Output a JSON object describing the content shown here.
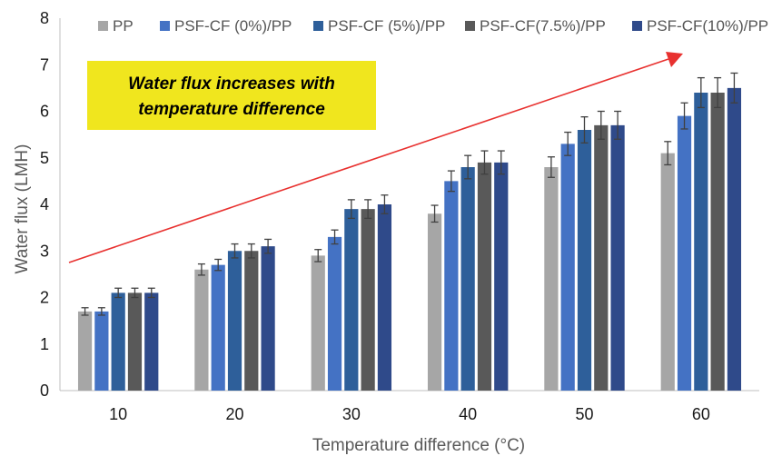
{
  "chart_data": {
    "type": "bar",
    "title": "",
    "xlabel": "Temperature difference (°C)",
    "ylabel": "Water flux (LMH)",
    "ylim": [
      0,
      8
    ],
    "yticks": [
      "0",
      "1",
      "2",
      "3",
      "4",
      "5",
      "6",
      "7",
      "8"
    ],
    "categories": [
      "10",
      "20",
      "30",
      "40",
      "50",
      "60"
    ],
    "series": [
      {
        "name": "PP",
        "color": "#a6a6a6",
        "values": [
          1.7,
          2.6,
          2.9,
          3.8,
          4.8,
          5.1
        ],
        "errors": [
          0.08,
          0.12,
          0.13,
          0.18,
          0.22,
          0.25
        ]
      },
      {
        "name": "PSF-CF (0%)/PP",
        "color": "#4472c4",
        "values": [
          1.7,
          2.7,
          3.3,
          4.5,
          5.3,
          5.9
        ],
        "errors": [
          0.08,
          0.12,
          0.15,
          0.22,
          0.25,
          0.28
        ]
      },
      {
        "name": "PSF-CF (5%)/PP",
        "color": "#2e5f9a",
        "values": [
          2.1,
          3.0,
          3.9,
          4.8,
          5.6,
          6.4
        ],
        "errors": [
          0.1,
          0.15,
          0.2,
          0.25,
          0.28,
          0.32
        ]
      },
      {
        "name": "PSF-CF(7.5%)/PP",
        "color": "#595959",
        "values": [
          2.1,
          3.0,
          3.9,
          4.9,
          5.7,
          6.4
        ],
        "errors": [
          0.1,
          0.15,
          0.2,
          0.25,
          0.3,
          0.32
        ]
      },
      {
        "name": "PSF-CF(10%)/PP",
        "color": "#2f4a8a",
        "values": [
          2.1,
          3.1,
          4.0,
          4.9,
          5.7,
          6.5
        ],
        "errors": [
          0.1,
          0.15,
          0.2,
          0.25,
          0.3,
          0.32
        ]
      }
    ],
    "annotation": {
      "text_lines": [
        "Water flux increases with",
        "temperature difference"
      ],
      "box_color": "#f0e61e",
      "arrow_color": "#e8312f"
    },
    "legend_position": "top",
    "grid": false
  }
}
